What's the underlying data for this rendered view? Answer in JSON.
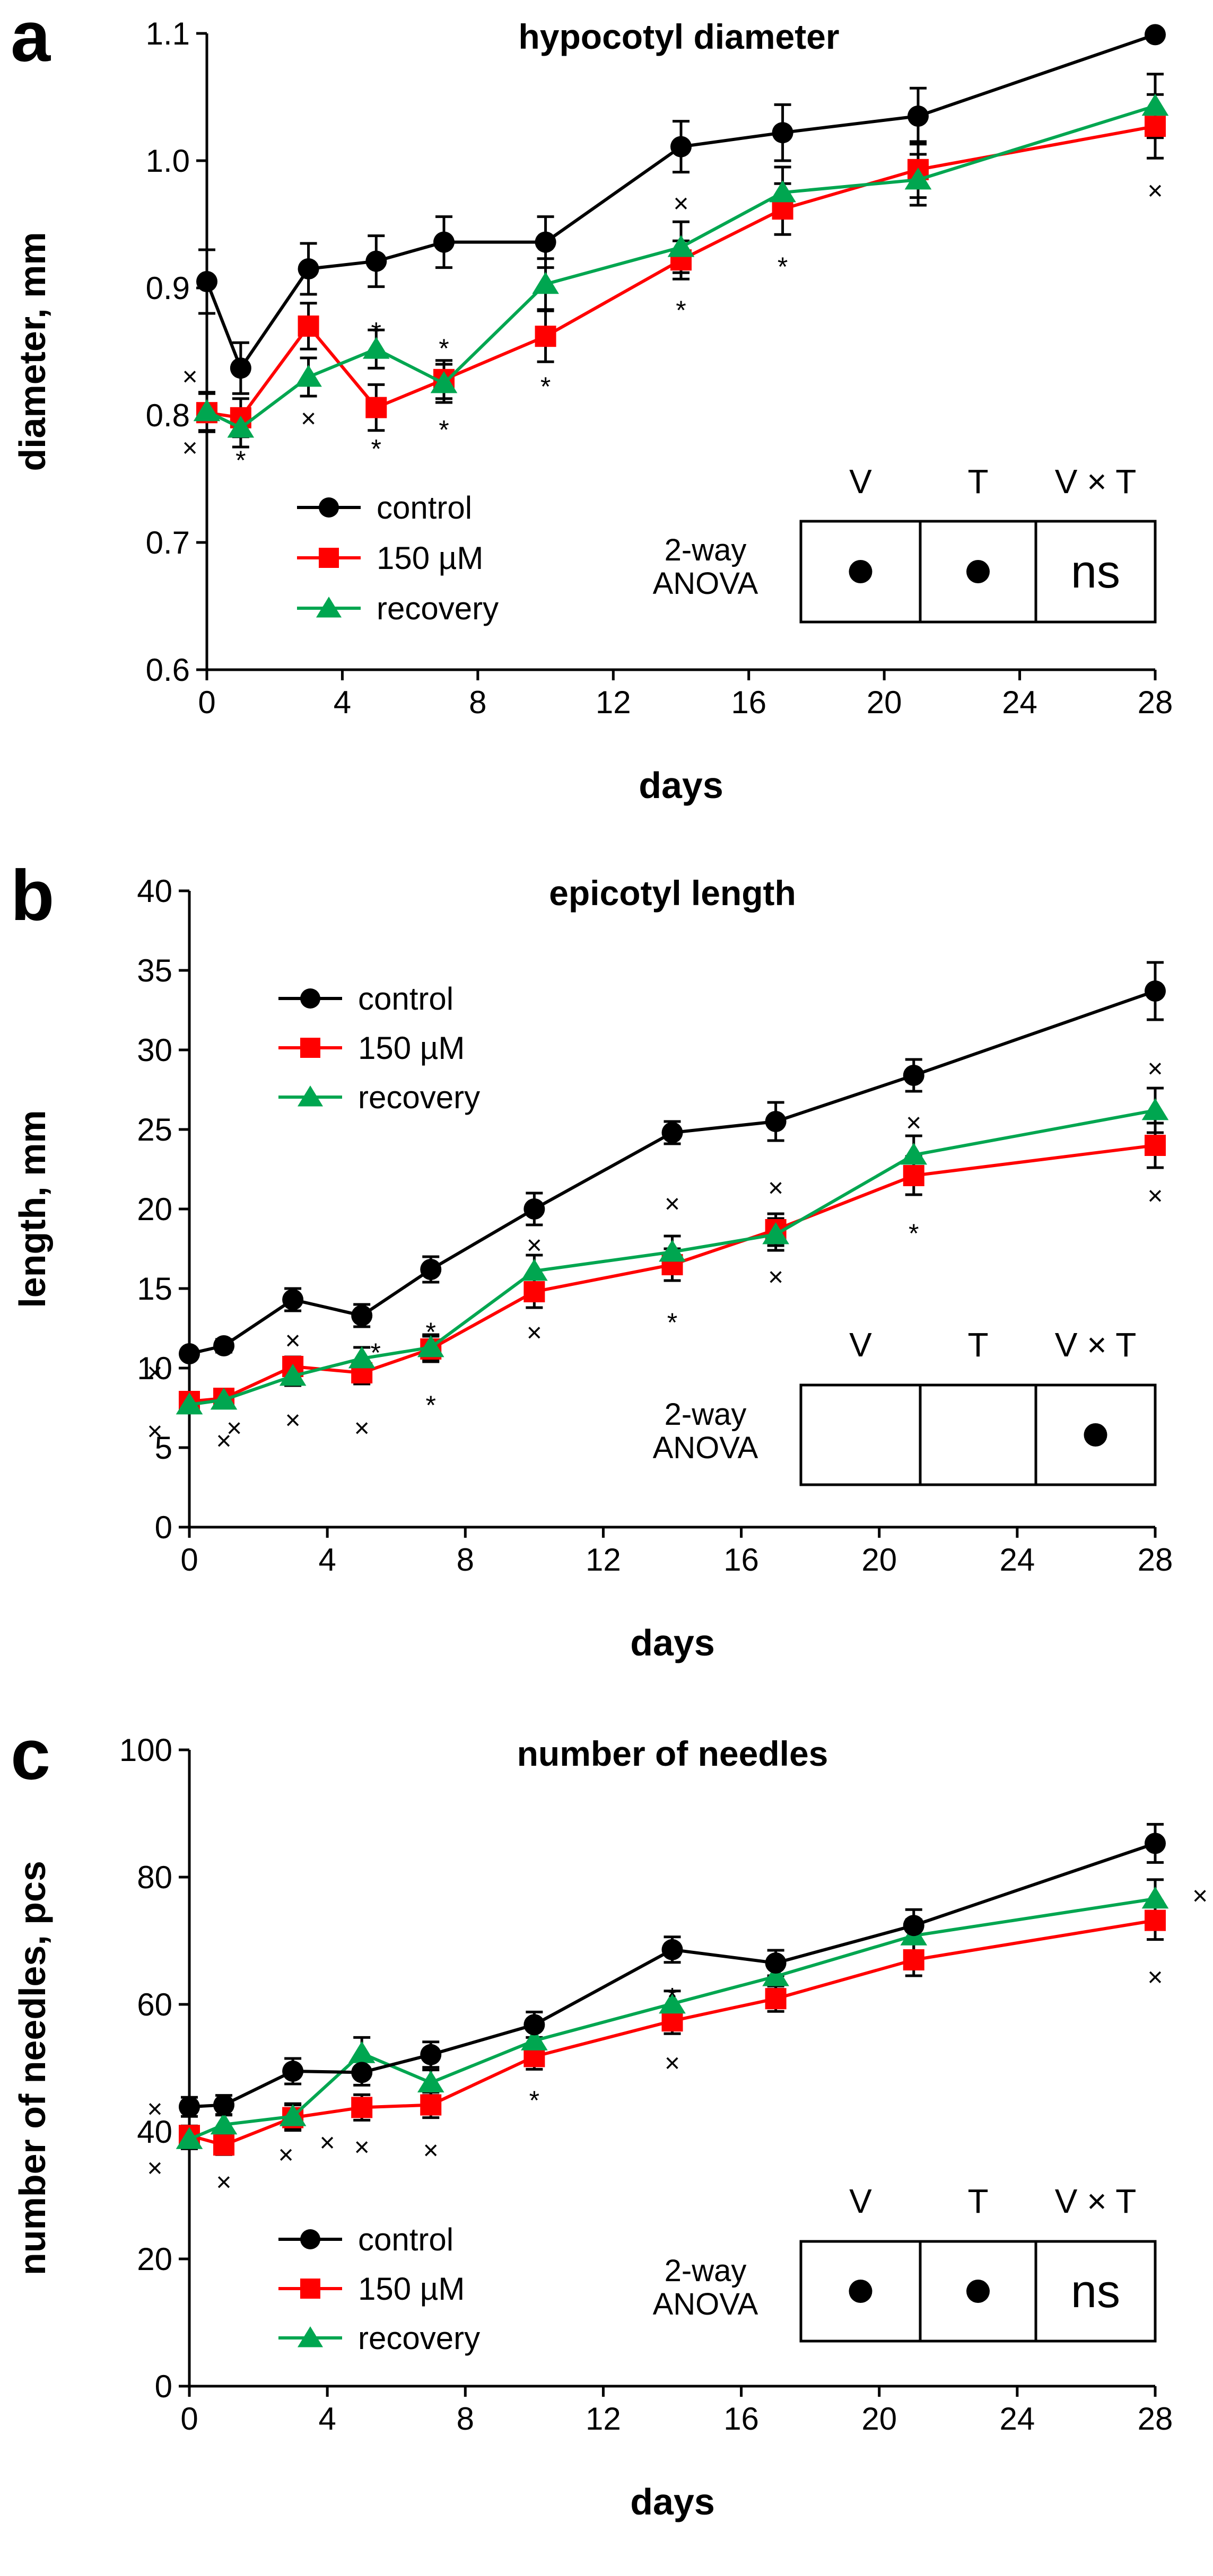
{
  "colors": {
    "control": "#000000",
    "stress": "#ff0000",
    "recovery": "#00a650"
  },
  "chart_data": [
    {
      "type": "line",
      "panel": "a",
      "title": "hypocotyl diameter",
      "xlabel": "days",
      "ylabel": "diameter, mm",
      "xlim": [
        0,
        28
      ],
      "ylim": [
        0.6,
        1.1
      ],
      "xticks": [
        0,
        4,
        8,
        12,
        16,
        20,
        24,
        28
      ],
      "xtick_labels": [
        "0",
        "4",
        "8",
        "12",
        "16",
        "20",
        "24",
        "28"
      ],
      "yticks": [
        0.6,
        0.7,
        0.8,
        0.9,
        1.0,
        1.1
      ],
      "ytick_labels": [
        "0.6",
        "0.7",
        "0.8",
        "0.9",
        "1.0",
        "1.1"
      ],
      "legend": [
        "control",
        "150 µM",
        "recovery"
      ],
      "series": [
        {
          "name": "control",
          "key": "control",
          "marker": "circle",
          "x": [
            0,
            1,
            3,
            5,
            7,
            10,
            14,
            17,
            21,
            28
          ],
          "values": [
            0.905,
            0.837,
            0.915,
            0.921,
            0.936,
            0.936,
            1.011,
            1.022,
            1.035,
            1.099
          ],
          "err": [
            0.025,
            0.02,
            0.02,
            0.02,
            0.02,
            0.02,
            0.02,
            0.022,
            0.022,
            0.0
          ]
        },
        {
          "name": "150 µM",
          "key": "stress",
          "marker": "square",
          "x": [
            0,
            1,
            3,
            5,
            7,
            10,
            14,
            17,
            21,
            28
          ],
          "values": [
            0.802,
            0.798,
            0.87,
            0.806,
            0.828,
            0.862,
            0.922,
            0.962,
            0.993,
            1.027
          ],
          "err": [
            0.015,
            0.015,
            0.018,
            0.018,
            0.015,
            0.02,
            0.015,
            0.02,
            0.022,
            0.025
          ]
        },
        {
          "name": "recovery",
          "key": "recovery",
          "marker": "triangle",
          "x": [
            0,
            1,
            3,
            5,
            7,
            10,
            14,
            17,
            21,
            28
          ],
          "values": [
            0.803,
            0.79,
            0.83,
            0.852,
            0.825,
            0.903,
            0.932,
            0.975,
            0.985,
            1.043
          ],
          "err": [
            0.015,
            0.015,
            0.015,
            0.015,
            0.015,
            0.02,
            0.02,
            0.02,
            0.02,
            0.025
          ]
        }
      ],
      "annotations": [
        {
          "text": "×",
          "x": -0.5,
          "y": 0.83
        },
        {
          "text": "×",
          "x": -0.5,
          "y": 0.774
        },
        {
          "text": "*",
          "x": 1.0,
          "y": 0.77
        },
        {
          "text": "×",
          "x": 3.0,
          "y": 0.797
        },
        {
          "text": "*",
          "x": 5.0,
          "y": 0.871
        },
        {
          "text": "*",
          "x": 5.0,
          "y": 0.779
        },
        {
          "text": "*",
          "x": 7.0,
          "y": 0.858
        },
        {
          "text": "*",
          "x": 7.0,
          "y": 0.794
        },
        {
          "text": "*",
          "x": 10.0,
          "y": 0.828
        },
        {
          "text": "×",
          "x": 14.0,
          "y": 0.966
        },
        {
          "text": "*",
          "x": 14.0,
          "y": 0.888
        },
        {
          "text": "*",
          "x": 17.0,
          "y": 0.922
        },
        {
          "text": "×",
          "x": 28.0,
          "y": 0.976
        }
      ],
      "anova": {
        "label_line1": "2-way",
        "label_line2": "ANOVA",
        "headers": [
          "V",
          "T",
          "V × T"
        ],
        "cells": [
          "●",
          "●",
          "ns"
        ]
      }
    },
    {
      "type": "line",
      "panel": "b",
      "title": "epicotyl length",
      "xlabel": "days",
      "ylabel": "length, mm",
      "xlim": [
        0,
        28
      ],
      "ylim": [
        0,
        40
      ],
      "xticks": [
        0,
        4,
        8,
        12,
        16,
        20,
        24,
        28
      ],
      "xtick_labels": [
        "0",
        "4",
        "8",
        "12",
        "16",
        "20",
        "24",
        "28"
      ],
      "yticks": [
        0,
        5,
        10,
        15,
        20,
        25,
        30,
        35,
        40
      ],
      "ytick_labels": [
        "0",
        "5",
        "10",
        "15",
        "20",
        "25",
        "30",
        "35",
        "40"
      ],
      "legend": [
        "control",
        "150 µM",
        "recovery"
      ],
      "series": [
        {
          "name": "control",
          "key": "control",
          "marker": "circle",
          "x": [
            0,
            1,
            3,
            5,
            7,
            10,
            14,
            17,
            21,
            28
          ],
          "values": [
            10.9,
            11.4,
            14.3,
            13.3,
            16.2,
            20.0,
            24.8,
            25.5,
            28.4,
            33.7
          ],
          "err": [
            0.3,
            0.4,
            0.7,
            0.7,
            0.8,
            1.0,
            0.7,
            1.2,
            1.0,
            1.8
          ]
        },
        {
          "name": "150 µM",
          "key": "stress",
          "marker": "square",
          "x": [
            0,
            1,
            3,
            5,
            7,
            10,
            14,
            17,
            21,
            28
          ],
          "values": [
            7.9,
            8.1,
            10.1,
            9.7,
            11.2,
            14.8,
            16.5,
            18.7,
            22.1,
            24.0
          ],
          "err": [
            0.4,
            0.5,
            0.6,
            0.7,
            0.8,
            1.0,
            1.0,
            1.0,
            1.2,
            1.4
          ]
        },
        {
          "name": "recovery",
          "key": "recovery",
          "marker": "triangle",
          "x": [
            0,
            1,
            3,
            5,
            7,
            10,
            14,
            17,
            21,
            28
          ],
          "values": [
            7.7,
            8.0,
            9.5,
            10.6,
            11.3,
            16.1,
            17.3,
            18.4,
            23.4,
            26.2
          ],
          "err": [
            0.4,
            0.5,
            0.6,
            0.7,
            0.8,
            1.0,
            1.0,
            1.0,
            1.2,
            1.4
          ]
        }
      ],
      "annotations": [
        {
          "text": "×",
          "x": -1.0,
          "y": 9.7
        },
        {
          "text": "×",
          "x": -1.0,
          "y": 6.0
        },
        {
          "text": "×",
          "x": 1.3,
          "y": 6.2
        },
        {
          "text": "×",
          "x": 1.0,
          "y": 5.4
        },
        {
          "text": "×",
          "x": 3.0,
          "y": 11.7
        },
        {
          "text": "×",
          "x": 3.0,
          "y": 6.7
        },
        {
          "text": "*",
          "x": 5.4,
          "y": 11.4
        },
        {
          "text": "×",
          "x": 5.0,
          "y": 6.2
        },
        {
          "text": "*",
          "x": 7.0,
          "y": 12.7
        },
        {
          "text": "*",
          "x": 7.0,
          "y": 8.1
        },
        {
          "text": "×",
          "x": 10.0,
          "y": 17.7
        },
        {
          "text": "×",
          "x": 10.0,
          "y": 12.2
        },
        {
          "text": "×",
          "x": 14.0,
          "y": 20.3
        },
        {
          "text": "*",
          "x": 14.0,
          "y": 13.3
        },
        {
          "text": "×",
          "x": 17.0,
          "y": 21.3
        },
        {
          "text": "×",
          "x": 17.0,
          "y": 15.7
        },
        {
          "text": "×",
          "x": 21.0,
          "y": 25.4
        },
        {
          "text": "*",
          "x": 21.0,
          "y": 18.9
        },
        {
          "text": "×",
          "x": 28.0,
          "y": 28.8
        },
        {
          "text": "×",
          "x": 28.0,
          "y": 20.8
        }
      ],
      "anova": {
        "label_line1": "2-way",
        "label_line2": "ANOVA",
        "headers": [
          "V",
          "T",
          "V × T"
        ],
        "cells": [
          "",
          "",
          "●"
        ]
      }
    },
    {
      "type": "line",
      "panel": "c",
      "title": "number of needles",
      "xlabel": "days",
      "ylabel": "number of needles, pcs",
      "xlim": [
        0,
        28
      ],
      "ylim": [
        0,
        100
      ],
      "xticks": [
        0,
        4,
        8,
        12,
        16,
        20,
        24,
        28
      ],
      "xtick_labels": [
        "0",
        "4",
        "8",
        "12",
        "16",
        "20",
        "24",
        "28"
      ],
      "yticks": [
        0,
        20,
        40,
        60,
        80,
        100
      ],
      "ytick_labels": [
        "0",
        "20",
        "40",
        "60",
        "80",
        "100"
      ],
      "legend": [
        "control",
        "150 µM",
        "recovery"
      ],
      "series": [
        {
          "name": "control",
          "key": "control",
          "marker": "circle",
          "x": [
            0,
            1,
            3,
            5,
            7,
            10,
            14,
            17,
            21,
            28
          ],
          "values": [
            43.9,
            44.2,
            49.5,
            49.3,
            52.1,
            56.8,
            68.6,
            66.5,
            72.4,
            85.3
          ],
          "err": [
            1.5,
            1.5,
            2.0,
            2.0,
            2.0,
            2.0,
            2.0,
            2.0,
            2.5,
            3.0
          ]
        },
        {
          "name": "150 µM",
          "key": "stress",
          "marker": "square",
          "x": [
            0,
            1,
            3,
            5,
            7,
            10,
            14,
            17,
            21,
            28
          ],
          "values": [
            39.4,
            37.9,
            42.2,
            43.8,
            44.2,
            51.8,
            57.4,
            60.9,
            67.0,
            73.2
          ],
          "err": [
            1.5,
            1.5,
            2.0,
            2.0,
            2.0,
            2.0,
            2.0,
            2.0,
            2.5,
            3.0
          ]
        },
        {
          "name": "recovery",
          "key": "recovery",
          "marker": "triangle",
          "x": [
            0,
            1,
            3,
            5,
            7,
            10,
            14,
            17,
            21,
            28
          ],
          "values": [
            38.8,
            41.1,
            42.4,
            52.3,
            47.7,
            54.3,
            60.1,
            64.4,
            70.8,
            76.6
          ],
          "err": [
            1.5,
            1.5,
            2.0,
            2.5,
            2.0,
            2.0,
            2.0,
            2.0,
            2.5,
            3.0
          ]
        }
      ],
      "annotations": [
        {
          "text": "×",
          "x": -1.0,
          "y": 43.5
        },
        {
          "text": "×",
          "x": -1.0,
          "y": 34.2
        },
        {
          "text": "×",
          "x": 1.0,
          "y": 32.0
        },
        {
          "text": "×",
          "x": 2.8,
          "y": 36.3
        },
        {
          "text": "×",
          "x": 4.0,
          "y": 38.2
        },
        {
          "text": "×",
          "x": 5.0,
          "y": 37.5
        },
        {
          "text": "×",
          "x": 7.0,
          "y": 37.0
        },
        {
          "text": "*",
          "x": 10.0,
          "y": 46.0
        },
        {
          "text": "*",
          "x": 14.0,
          "y": 62.2
        },
        {
          "text": "×",
          "x": 14.0,
          "y": 50.7
        },
        {
          "text": "×",
          "x": 29.3,
          "y": 77.0
        },
        {
          "text": "×",
          "x": 28.0,
          "y": 64.2
        }
      ],
      "anova": {
        "label_line1": "2-way",
        "label_line2": "ANOVA",
        "headers": [
          "V",
          "T",
          "V × T"
        ],
        "cells": [
          "●",
          "●",
          "ns"
        ]
      }
    }
  ]
}
